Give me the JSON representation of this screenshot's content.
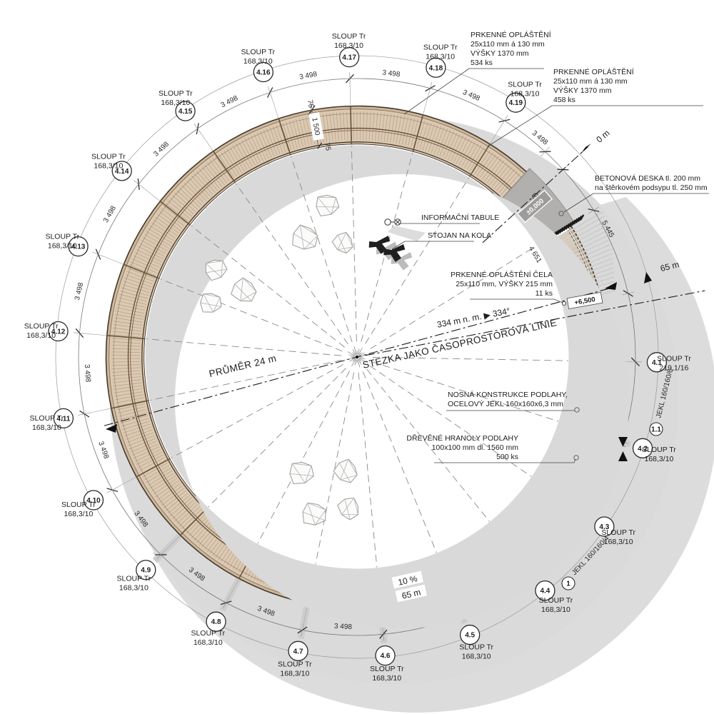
{
  "drawing": {
    "title": "STEZKA JAKO ČASOPROSTOROVÁ LINIE",
    "diameter": "PRŮMĚR 24 m",
    "altitude": "334 m n. m.  ▶  334°"
  },
  "route": {
    "start": "0 m",
    "end": "65 m",
    "length": "65 m",
    "slope": "10 %",
    "level_start": "±0,000",
    "level_end": "+6,500"
  },
  "dims": {
    "outer_span": "3 498",
    "inner_span": "2 988",
    "walkway_width": "1 500",
    "plank": "75",
    "entry_span": "5 445",
    "entry_edge": "4 651"
  },
  "columns": {
    "ids": [
      "4.1",
      "4.2",
      "4.3",
      "4.4",
      "4.5",
      "4.6",
      "4.7",
      "4.8",
      "4.9",
      "4.10",
      "4.11",
      "4.12",
      "4.13",
      "4.14",
      "4.15",
      "4.16",
      "4.17",
      "4.18",
      "4.19"
    ],
    "default_label": [
      "SLOUP Tr",
      "168,3/10"
    ],
    "first_label": [
      "SLOUP Tr",
      "219,1/16"
    ]
  },
  "steel": [
    {
      "id": "1.1",
      "label": "JEKL 160/160/6"
    },
    {
      "id": "1",
      "label": "JEKL 160/160/4"
    }
  ],
  "notes": {
    "cladding_a": [
      "PRKENNÉ OPLÁŠTĚNÍ",
      "25x110 mm á 130 mm",
      "VÝŠKY 1370 mm",
      "534 ks"
    ],
    "cladding_b": [
      "PRKENNÉ OPLÁŠTĚNÍ",
      "25x110 mm á 130 mm",
      "VÝŠKY 1370 mm",
      "458 ks"
    ],
    "concrete": [
      "BETONOVÁ DESKA tl. 200 mm",
      "na štěrkovém podsypu tl. 250 mm"
    ],
    "front_cladding": [
      "PRKENNÉ OPLÁŠTĚNÍ ČELA",
      "25x110 mm, VÝŠKY 215 mm",
      "11 ks"
    ],
    "floor_structure": [
      "NOSNÁ KONSTRUKCE PODLAHY,",
      "OCELOVÝ JEKL 160x160x6,3 mm"
    ],
    "floor_beams": [
      "DŘEVĚNÉ HRANOLY PODLAHY",
      "100x100 mm dl. 1560 mm",
      "500 ks"
    ],
    "info_board": "INFORMAČNÍ TABULE",
    "bike_stand": "STOJAN NA KOLA"
  },
  "colors": {
    "wood": "#dbc9b3",
    "wood_rail": "#cbb89f",
    "wood_hatch": "#93785a",
    "edge_dark": "#473828",
    "edge_darker": "#2b241d",
    "mid_rail": "#5a432e",
    "shadow": "#dadada",
    "shadow_inner": "#d9d9d9",
    "slab": "#b1b0ae",
    "slab_box": "#9d9c9a",
    "dim_line": "#777777",
    "text_dark": "#1e1e1e"
  }
}
